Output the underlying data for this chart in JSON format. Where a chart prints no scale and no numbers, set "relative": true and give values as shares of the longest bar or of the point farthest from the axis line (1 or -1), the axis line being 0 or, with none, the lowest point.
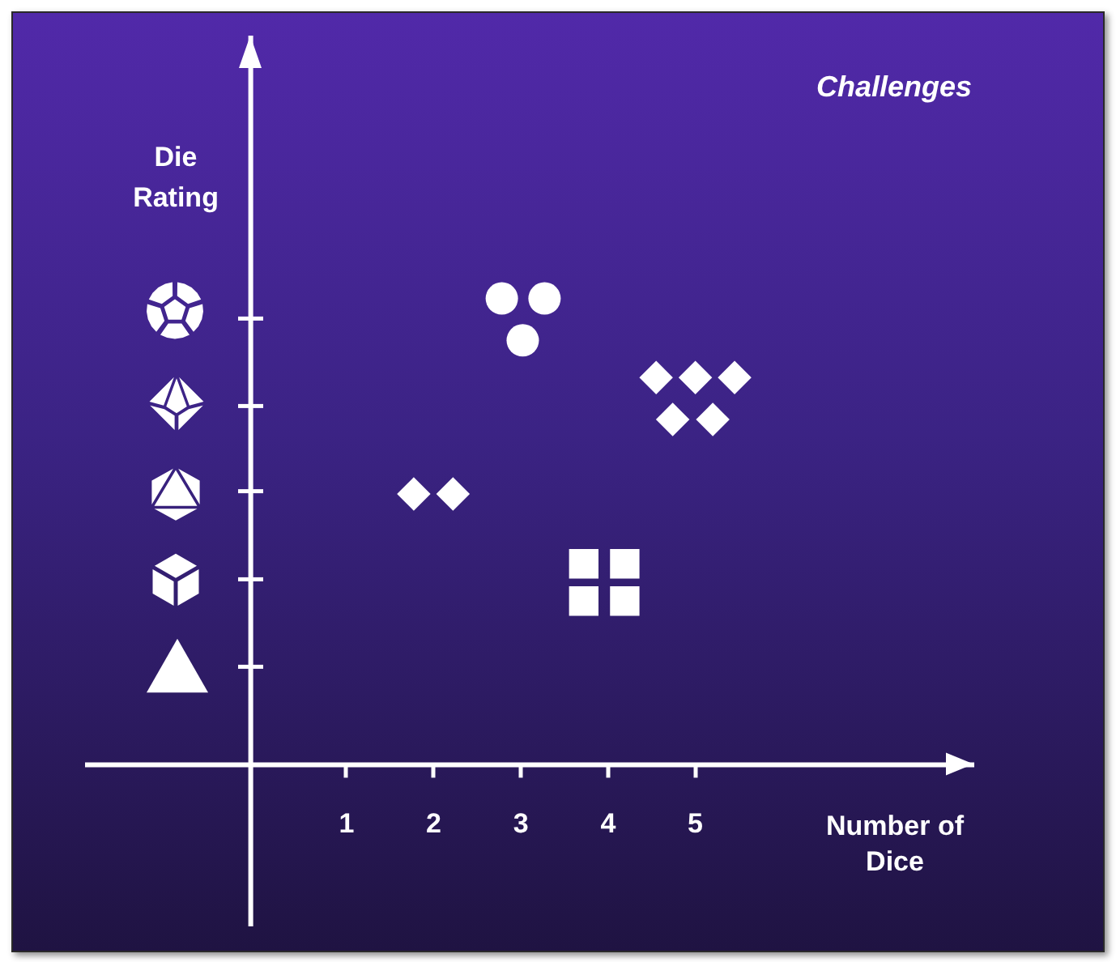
{
  "chart_data": {
    "type": "scatter",
    "title": "Challenges",
    "xlabel": "Number of Dice",
    "ylabel": "Die Rating",
    "relative": true,
    "xlim": [
      -2,
      8.2
    ],
    "xticks": [
      1,
      2,
      3,
      4,
      5
    ],
    "tick_labels": "x",
    "ref_lines": [
      {
        "axis": "x",
        "value": -0.09,
        "color": "#ffffff"
      }
    ],
    "series": [
      {
        "marker": "circle",
        "color": "#ffffff",
        "x": [
          2.79,
          3.28,
          3.03
        ],
        "values": [
          1,
          1,
          0.91
        ]
      },
      {
        "marker": "diamond",
        "color": "#ffffff",
        "x": [
          4.56,
          5.01,
          5.46,
          4.75,
          5.21
        ],
        "values": [
          0.83,
          0.83,
          0.83,
          0.74,
          0.74
        ]
      },
      {
        "marker": "diamond",
        "color": "#ffffff",
        "x": [
          1.78,
          2.23
        ],
        "values": [
          0.58,
          0.58
        ]
      },
      {
        "marker": "square",
        "color": "#ffffff",
        "x": [
          3.73,
          4.2,
          3.73,
          4.2
        ],
        "values": [
          0.43,
          0.43,
          0.35,
          0.35
        ]
      }
    ]
  }
}
